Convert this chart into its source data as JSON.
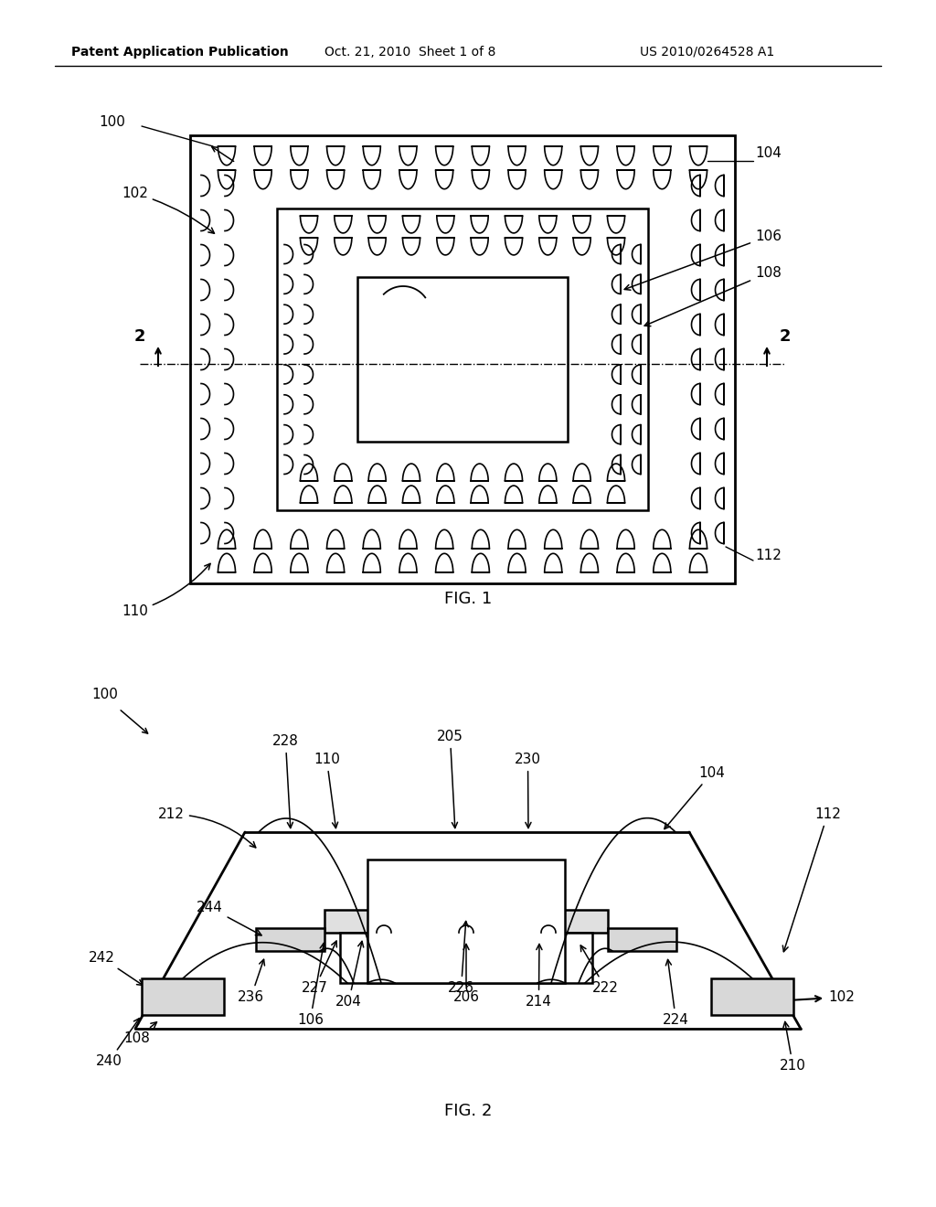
{
  "bg_color": "#ffffff",
  "line_color": "#000000",
  "header_left": "Patent Application Publication",
  "header_mid": "Oct. 21, 2010  Sheet 1 of 8",
  "header_right": "US 2010/0264528 A1",
  "fig1_caption": "FIG. 1",
  "fig2_caption": "FIG. 2"
}
